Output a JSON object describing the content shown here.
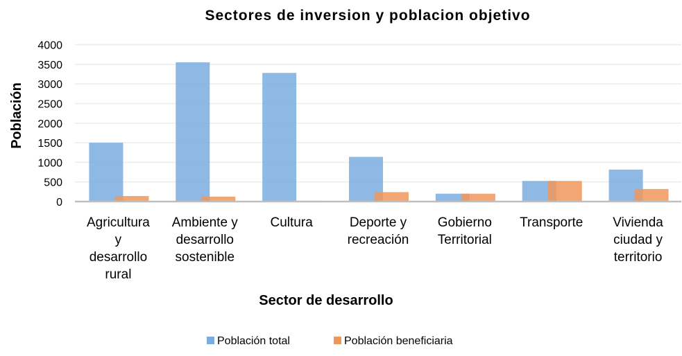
{
  "chart_data": {
    "type": "bar",
    "title": "Sectores de inversion y poblacion objetivo",
    "xlabel": "Sector de desarrollo",
    "ylabel": "Población",
    "ylim": [
      0,
      4000
    ],
    "yticks": [
      "0",
      "500",
      "1000",
      "1500",
      "2000",
      "2500",
      "3000",
      "3500",
      "4000"
    ],
    "grid": true,
    "legend_position": "bottom",
    "categories": [
      [
        "Agricultura",
        "y",
        "desarrollo",
        "rural"
      ],
      [
        "Ambiente y",
        "desarrollo",
        "sostenible"
      ],
      [
        "Cultura"
      ],
      [
        "Deporte y",
        "recreación"
      ],
      [
        "Gobierno",
        "Territorial"
      ],
      [
        "Transporte"
      ],
      [
        "Vivienda",
        "ciudad y",
        "territorio"
      ]
    ],
    "series": [
      {
        "name": "Población total",
        "color": "#7aaddf",
        "values": [
          1500,
          3550,
          3280,
          1140,
          200,
          525,
          815
        ]
      },
      {
        "name": "Población beneficiaria",
        "color": "#f0965a",
        "values": [
          140,
          125,
          20,
          240,
          200,
          525,
          320
        ]
      }
    ]
  }
}
